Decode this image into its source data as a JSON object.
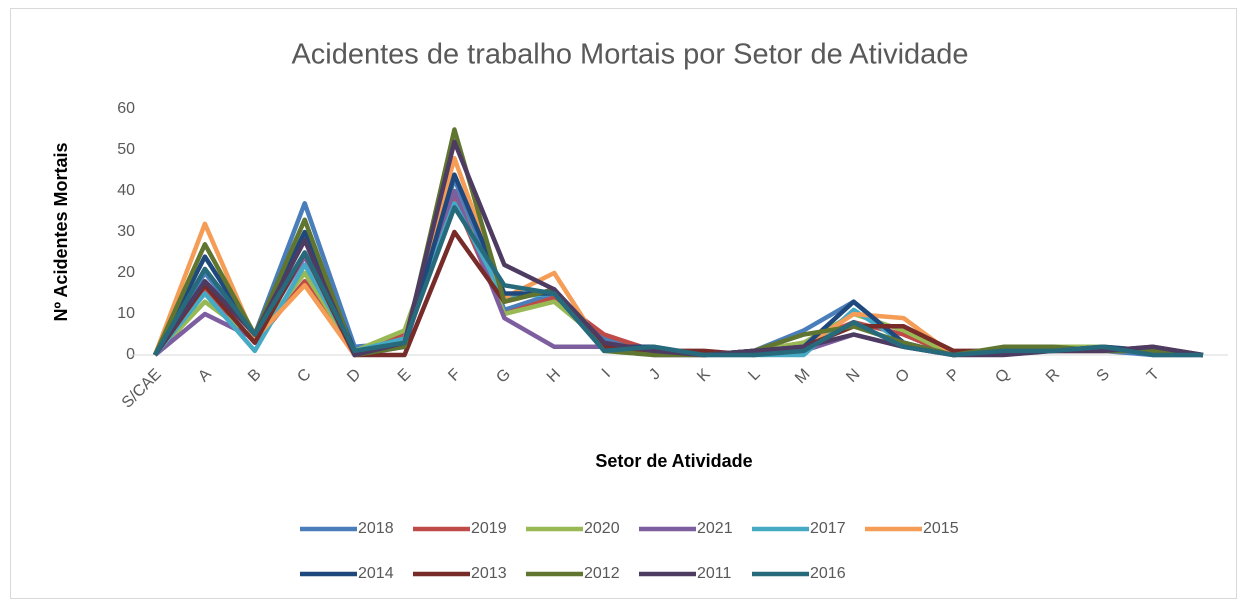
{
  "chart_data": {
    "type": "line",
    "title": "Acidentes de trabalho Mortais por Setor de Atividade",
    "x_label": "Setor de Atividade",
    "y_label": "Nº Acidentes Mortais",
    "categories": [
      "S/CAE",
      "A",
      "B",
      "C",
      "D",
      "E",
      "F",
      "G",
      "H",
      "I",
      "J",
      "K",
      "L",
      "M",
      "N",
      "O",
      "P",
      "Q",
      "R",
      "S",
      "T",
      null
    ],
    "ylim": [
      0,
      60
    ],
    "yticks": [
      0,
      10,
      20,
      30,
      40,
      50,
      60
    ],
    "grid": false,
    "legend": "bottom",
    "series": [
      {
        "name": "2018",
        "color": "#4a7ebb",
        "values": [
          0,
          20,
          5,
          37,
          2,
          3,
          43,
          11,
          15,
          4,
          1,
          0,
          1,
          6,
          13,
          3,
          0,
          1,
          1,
          1,
          0,
          0
        ]
      },
      {
        "name": "2019",
        "color": "#be4b48",
        "values": [
          0,
          16,
          3,
          18,
          0,
          5,
          38,
          10,
          14,
          5,
          1,
          0,
          1,
          3,
          8,
          5,
          0,
          1,
          1,
          1,
          1,
          0
        ]
      },
      {
        "name": "2020",
        "color": "#98b954",
        "values": [
          0,
          13,
          4,
          20,
          1,
          6,
          40,
          10,
          13,
          3,
          1,
          0,
          1,
          3,
          10,
          6,
          0,
          1,
          2,
          2,
          1,
          0
        ]
      },
      {
        "name": "2021",
        "color": "#7d5fa0",
        "values": [
          0,
          10,
          4,
          24,
          0,
          2,
          40,
          9,
          2,
          2,
          0,
          0,
          1,
          1,
          5,
          2,
          0,
          1,
          1,
          1,
          1,
          0
        ]
      },
      {
        "name": "2017",
        "color": "#46aac5",
        "values": [
          0,
          15,
          1,
          22,
          1,
          4,
          37,
          14,
          15,
          2,
          1,
          0,
          0,
          0,
          11,
          3,
          0,
          1,
          1,
          1,
          1,
          0
        ]
      },
      {
        "name": "2015",
        "color": "#f59d56",
        "values": [
          0,
          32,
          4,
          17,
          0,
          3,
          48,
          14,
          20,
          1,
          1,
          0,
          1,
          2,
          10,
          9,
          0,
          1,
          1,
          1,
          1,
          0
        ]
      },
      {
        "name": "2014",
        "color": "#1f497d",
        "values": [
          0,
          24,
          5,
          30,
          1,
          2,
          44,
          15,
          15,
          2,
          2,
          0,
          1,
          2,
          13,
          3,
          0,
          1,
          1,
          2,
          1,
          0
        ]
      },
      {
        "name": "2013",
        "color": "#772c2a",
        "values": [
          0,
          17,
          3,
          25,
          0,
          0,
          30,
          13,
          16,
          2,
          1,
          1,
          0,
          2,
          7,
          7,
          1,
          1,
          1,
          1,
          2,
          0
        ]
      },
      {
        "name": "2012",
        "color": "#5f7530",
        "values": [
          0,
          27,
          5,
          33,
          0,
          2,
          55,
          13,
          16,
          1,
          0,
          0,
          1,
          5,
          7,
          3,
          0,
          2,
          2,
          1,
          1,
          0
        ]
      },
      {
        "name": "2011",
        "color": "#4d3b62",
        "values": [
          0,
          18,
          5,
          28,
          0,
          3,
          52,
          22,
          16,
          3,
          1,
          0,
          1,
          2,
          5,
          2,
          0,
          0,
          1,
          1,
          2,
          0
        ]
      },
      {
        "name": "2016",
        "color": "#276a7c",
        "values": [
          0,
          21,
          5,
          25,
          1,
          3,
          36,
          17,
          15,
          1,
          2,
          0,
          0,
          1,
          8,
          2,
          0,
          1,
          1,
          2,
          0,
          0
        ]
      }
    ]
  }
}
